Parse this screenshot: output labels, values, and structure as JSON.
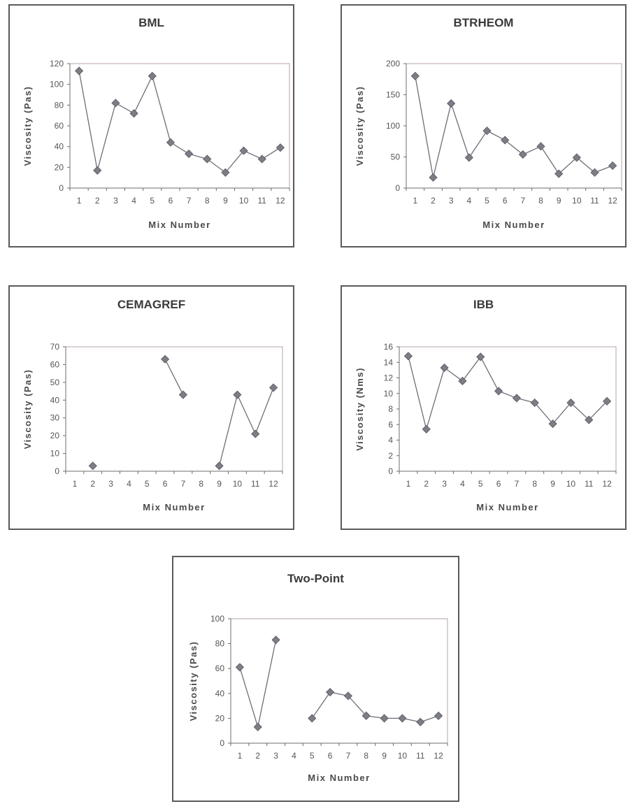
{
  "chart_data": [
    {
      "type": "line",
      "title": "BML",
      "xlabel": "Mix Number",
      "ylabel": "Viscosity (Pas)",
      "categories": [
        "1",
        "2",
        "3",
        "4",
        "5",
        "6",
        "7",
        "8",
        "9",
        "10",
        "11",
        "12"
      ],
      "yticks": [
        "0",
        "20",
        "40",
        "60",
        "80",
        "100",
        "120"
      ],
      "ylim": [
        0,
        120
      ],
      "grid": false,
      "values": [
        113,
        17,
        82,
        72,
        108,
        44,
        33,
        28,
        15,
        36,
        28,
        39
      ],
      "marker": "diamond",
      "line_color": "#6e6e78"
    },
    {
      "type": "line",
      "title": "BTRHEOM",
      "xlabel": "Mix Number",
      "ylabel": "Viscosity (Pas)",
      "categories": [
        "1",
        "2",
        "3",
        "4",
        "5",
        "6",
        "7",
        "8",
        "9",
        "10",
        "11",
        "12"
      ],
      "yticks": [
        "0",
        "50",
        "100",
        "150",
        "200"
      ],
      "ylim": [
        0,
        200
      ],
      "grid": false,
      "values": [
        180,
        17,
        136,
        49,
        92,
        77,
        54,
        67,
        23,
        49,
        25,
        36
      ],
      "marker": "diamond",
      "line_color": "#6e6e78"
    },
    {
      "type": "line",
      "title": "CEMAGREF",
      "xlabel": "Mix Number",
      "ylabel": "Viscosity (Pas)",
      "categories": [
        "1",
        "2",
        "3",
        "4",
        "5",
        "6",
        "7",
        "8",
        "9",
        "10",
        "11",
        "12"
      ],
      "yticks": [
        "0",
        "10",
        "20",
        "30",
        "40",
        "50",
        "60",
        "70"
      ],
      "ylim": [
        0,
        70
      ],
      "grid": false,
      "values": [
        null,
        3,
        null,
        null,
        null,
        63,
        43,
        null,
        3,
        43,
        21,
        47
      ],
      "marker": "diamond",
      "line_color": "#6e6e78"
    },
    {
      "type": "line",
      "title": "IBB",
      "xlabel": "Mix Number",
      "ylabel": "Viscosity (Nms)",
      "categories": [
        "1",
        "2",
        "3",
        "4",
        "5",
        "6",
        "7",
        "8",
        "9",
        "10",
        "11",
        "12"
      ],
      "yticks": [
        "0",
        "2",
        "4",
        "6",
        "8",
        "10",
        "12",
        "14",
        "16"
      ],
      "ylim": [
        0,
        16
      ],
      "grid": false,
      "values": [
        14.8,
        5.4,
        13.3,
        11.6,
        14.7,
        10.3,
        9.4,
        8.8,
        6.1,
        8.8,
        6.6,
        9.0
      ],
      "marker": "diamond",
      "line_color": "#6e6e78"
    },
    {
      "type": "line",
      "title": "Two-Point",
      "xlabel": "Mix Number",
      "ylabel": "Viscosity (Pas)",
      "categories": [
        "1",
        "2",
        "3",
        "4",
        "5",
        "6",
        "7",
        "8",
        "9",
        "10",
        "11",
        "12"
      ],
      "yticks": [
        "0",
        "20",
        "40",
        "60",
        "80",
        "100"
      ],
      "ylim": [
        0,
        100
      ],
      "grid": false,
      "values": [
        61,
        13,
        83,
        null,
        20,
        41,
        38,
        22,
        20,
        20,
        17,
        22
      ],
      "marker": "diamond",
      "line_color": "#6e6e78"
    }
  ]
}
